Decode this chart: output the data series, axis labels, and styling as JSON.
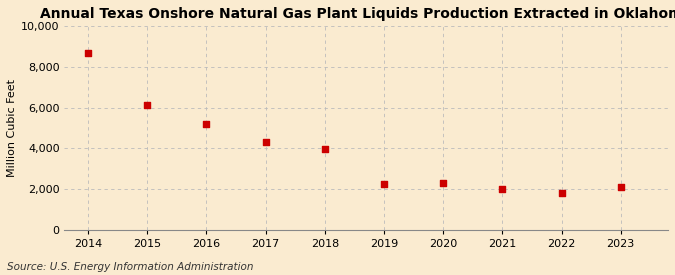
{
  "title": "Annual Texas Onshore Natural Gas Plant Liquids Production Extracted in Oklahoma",
  "ylabel": "Million Cubic Feet",
  "source": "Source: U.S. Energy Information Administration",
  "x": [
    2014,
    2015,
    2016,
    2017,
    2018,
    2019,
    2020,
    2021,
    2022,
    2023
  ],
  "y": [
    8700,
    6150,
    5200,
    4300,
    3950,
    2250,
    2300,
    1980,
    1830,
    2100
  ],
  "marker_color": "#cc0000",
  "marker_size": 4,
  "background_color": "#faebd0",
  "grid_color": "#bbbbbb",
  "ylim": [
    0,
    10000
  ],
  "yticks": [
    0,
    2000,
    4000,
    6000,
    8000,
    10000
  ],
  "xlim": [
    2013.6,
    2023.8
  ],
  "xticks": [
    2014,
    2015,
    2016,
    2017,
    2018,
    2019,
    2020,
    2021,
    2022,
    2023
  ],
  "title_fontsize": 10,
  "label_fontsize": 8,
  "tick_fontsize": 8,
  "source_fontsize": 7.5
}
